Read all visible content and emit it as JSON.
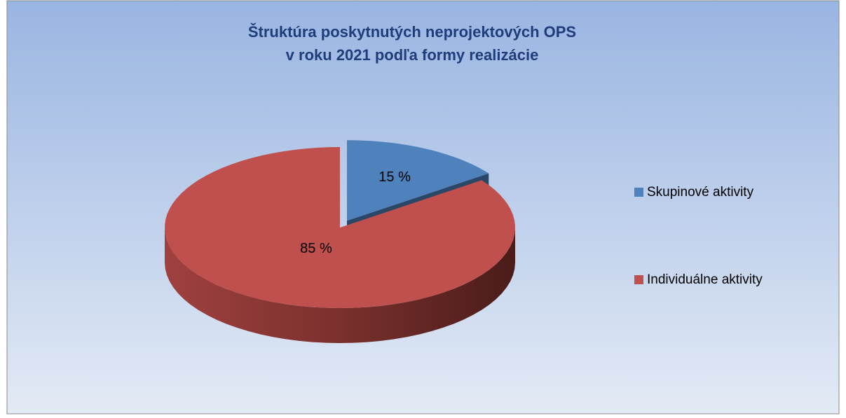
{
  "chart_data": {
    "type": "pie",
    "title": [
      "Štruktúra poskytnutých neprojektových OPS",
      "v roku 2021 podľa formy realizácie"
    ],
    "categories": [
      "Skupinové aktivity",
      "Individuálne aktivity"
    ],
    "values": [
      15,
      85
    ],
    "value_labels": [
      "15 %",
      "85 %"
    ],
    "colors": [
      "#4f81bd",
      "#c0504d"
    ],
    "legend": "right"
  }
}
